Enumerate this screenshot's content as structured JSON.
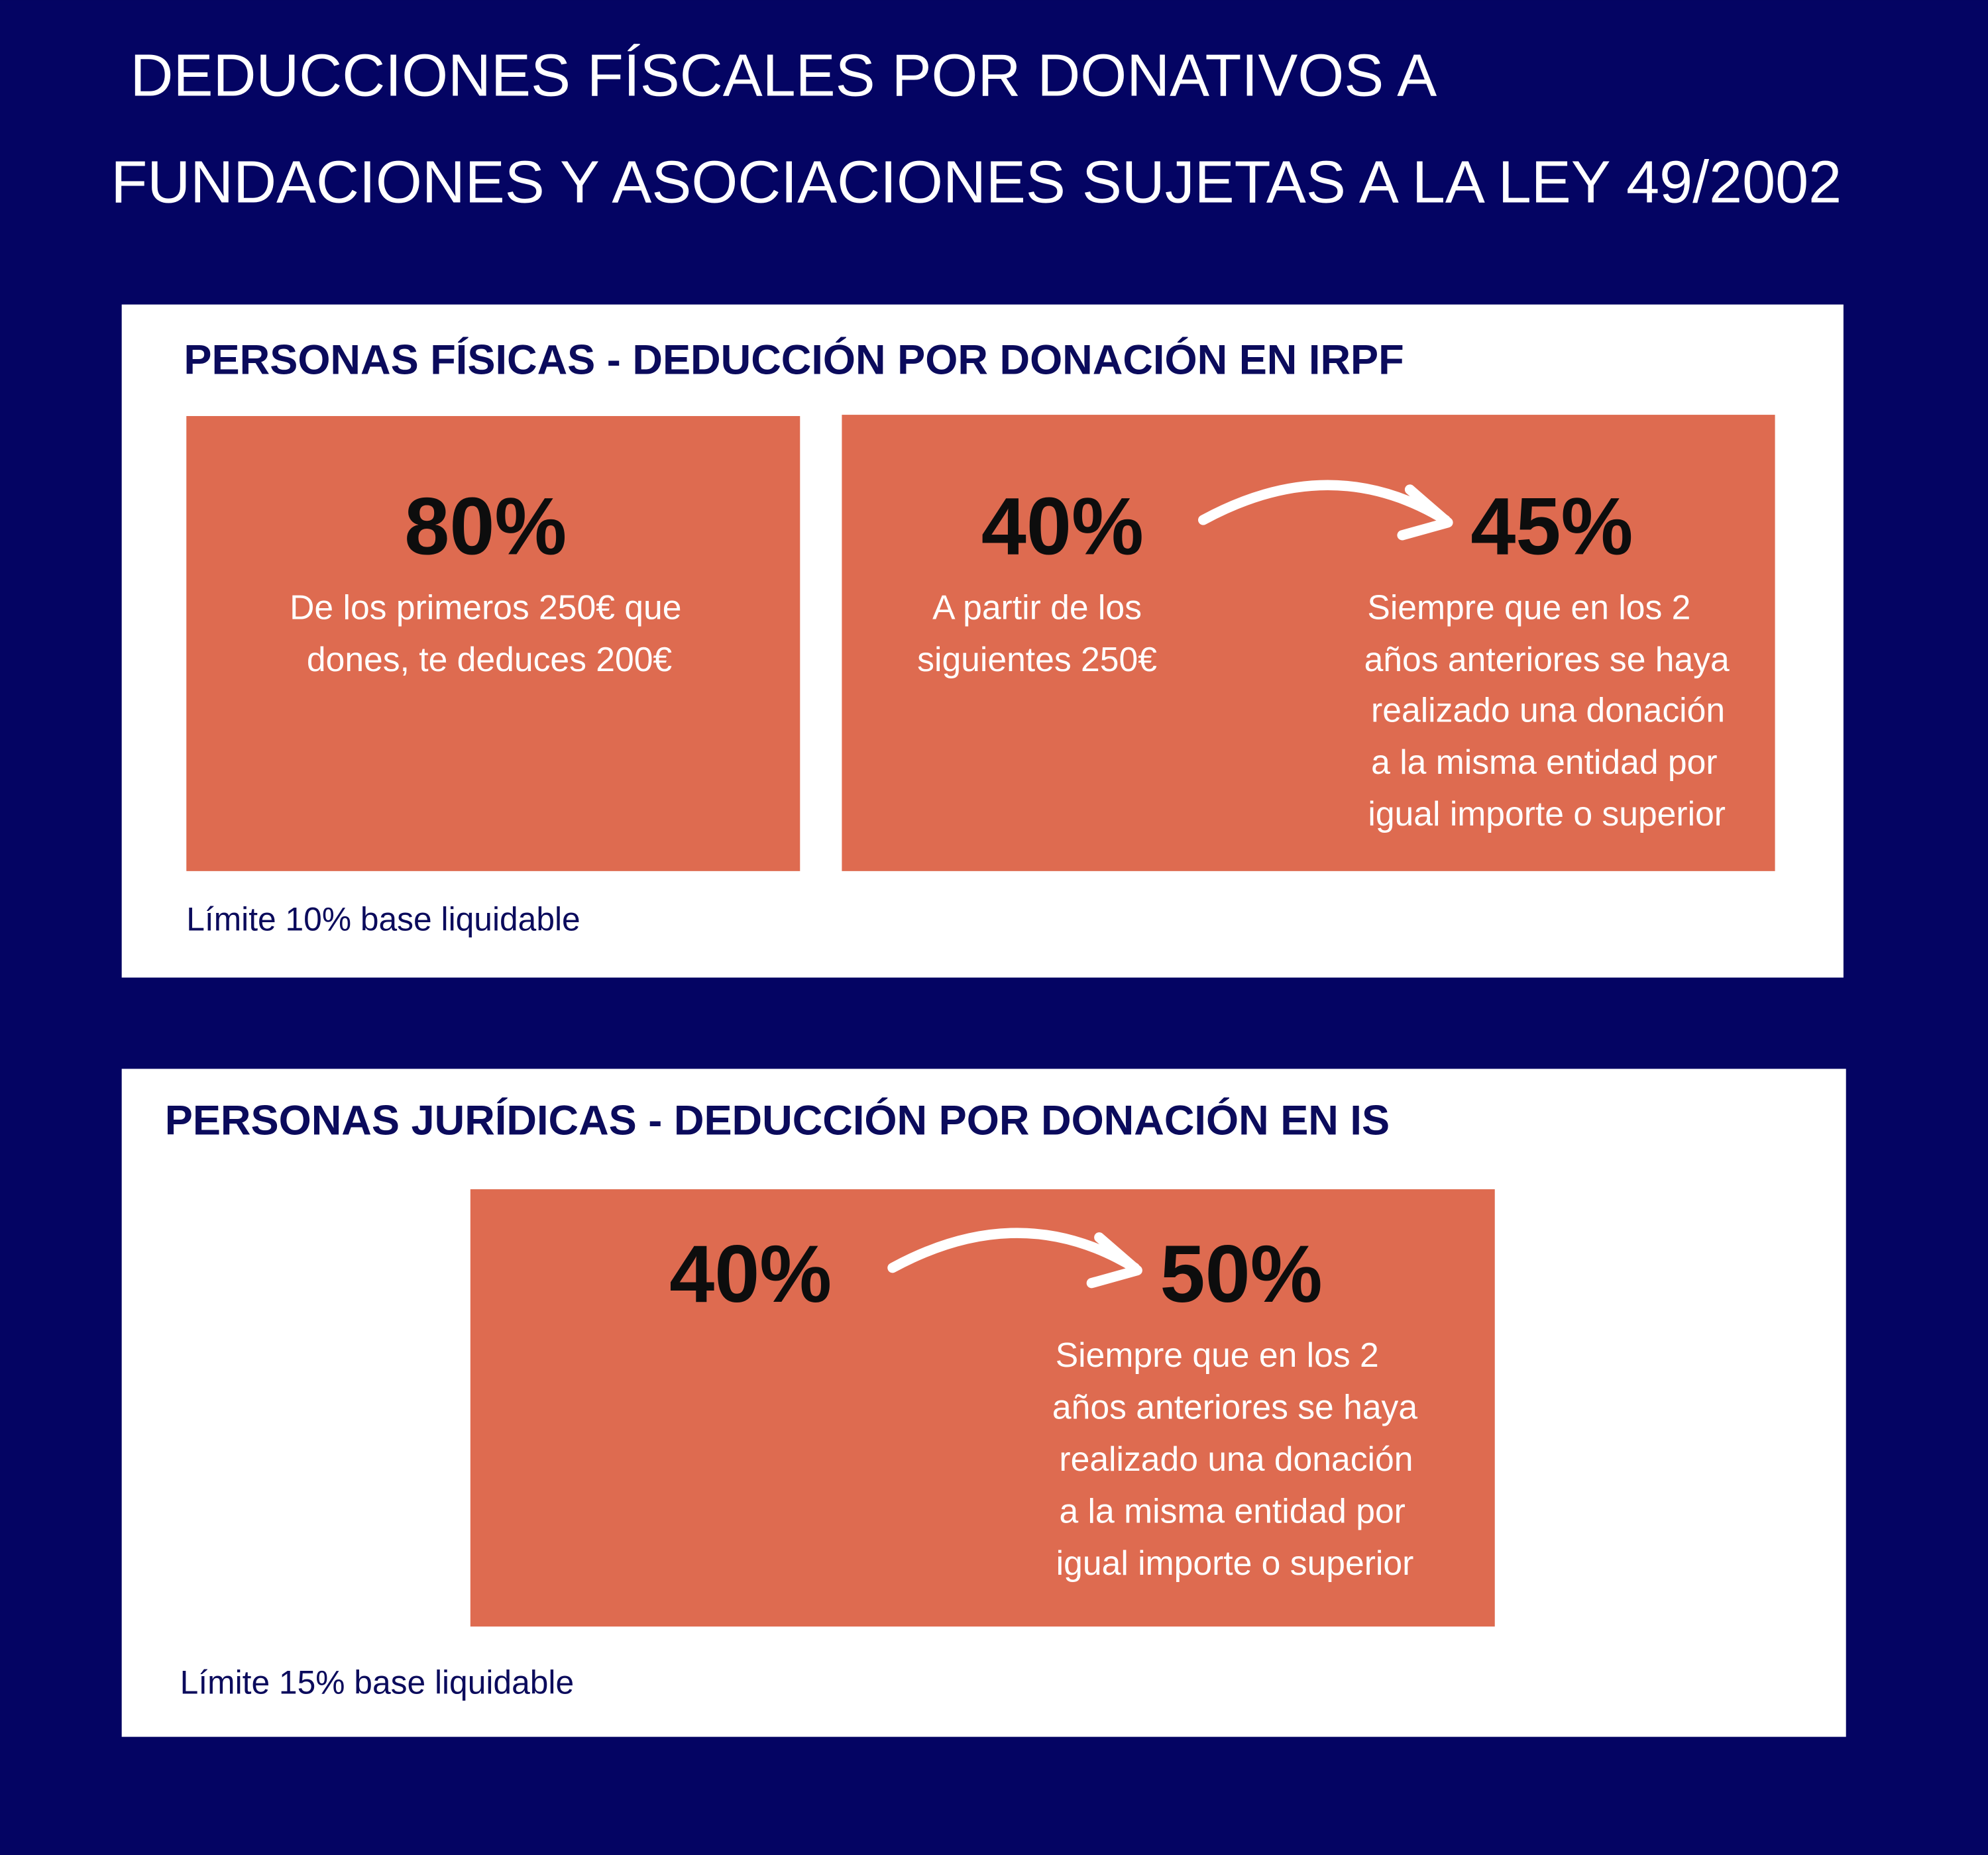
{
  "header": {
    "title_lines": [
      "DEDUCCIONES FÍSCALES POR DONATIVOS A",
      "FUNDACIONES Y ASOCIACIONES SUJETAS A LA LEY 49/2002"
    ]
  },
  "sections": [
    {
      "heading": "PERSONAS FÍSICAS - DEDUCCIÓN POR DONACIÓN EN IRPF",
      "boxes": [
        {
          "items": [
            {
              "percent": "80%",
              "lines": [
                "De los primeros 250€ que",
                "dones, te deduces 200€"
              ]
            }
          ]
        },
        {
          "items": [
            {
              "percent": "40%",
              "lines": [
                "A partir de los",
                "siguientes 250€"
              ]
            },
            {
              "percent": "45%",
              "lines": [
                "Siempre que en los 2",
                "años anteriores se haya",
                "realizado una donación",
                "a la misma entidad por",
                "igual importe o superior"
              ]
            }
          ]
        }
      ],
      "limit": "Límite 10% base liquidable"
    },
    {
      "heading": "PERSONAS JURÍDICAS - DEDUCCIÓN POR DONACIÓN EN IS",
      "boxes": [
        {
          "items": [
            {
              "percent": "40%",
              "lines": []
            },
            {
              "percent": "50%",
              "lines": [
                "Siempre que en los 2",
                "años anteriores se haya",
                "realizado una donación",
                "a la misma entidad por",
                "igual importe o superior"
              ]
            }
          ]
        }
      ],
      "limit": "Límite 15% base liquidable"
    }
  ]
}
